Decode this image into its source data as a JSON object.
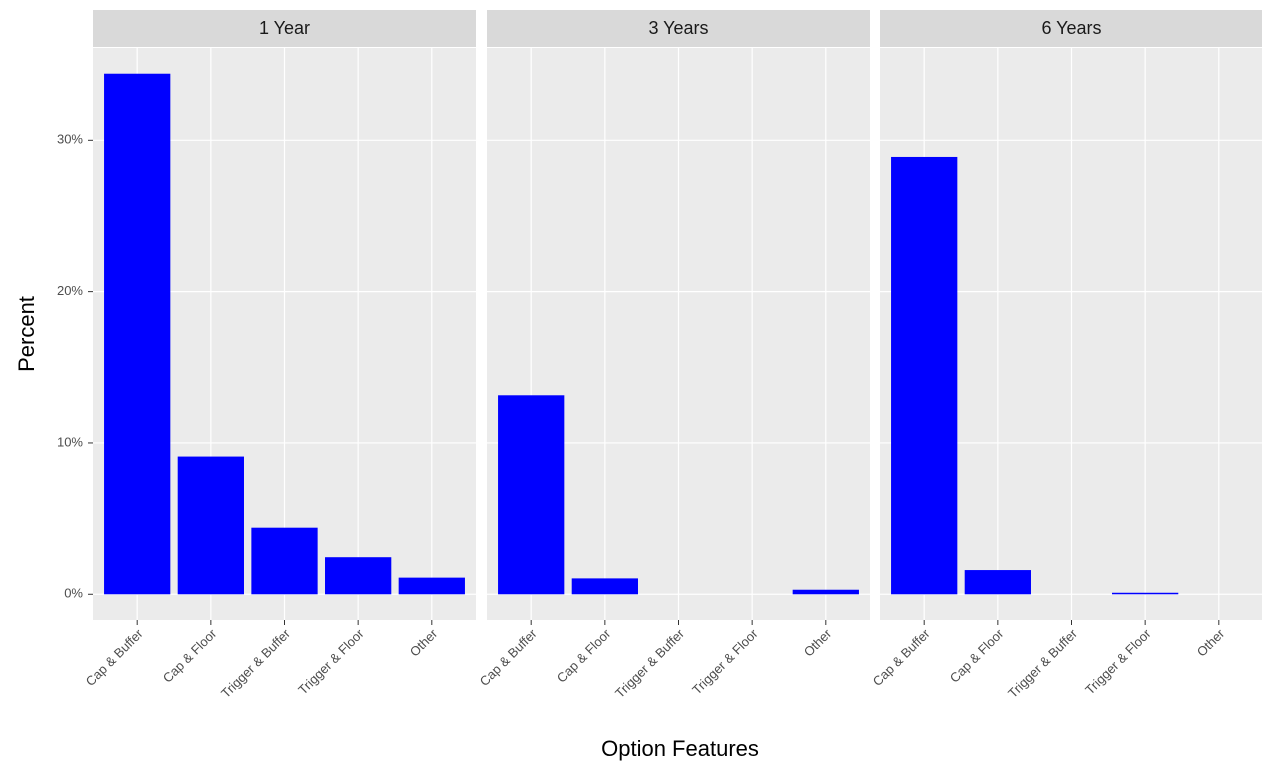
{
  "chart_data": {
    "type": "bar",
    "xlabel": "Option Features",
    "ylabel": "Percent",
    "categories": [
      "Cap & Buffer",
      "Cap & Floor",
      "Trigger & Buffer",
      "Trigger & Floor",
      "Other"
    ],
    "color": "#0000ff",
    "ylim": [
      -1.7,
      36.1
    ],
    "yticks": [
      {
        "value": 0,
        "label": "0%"
      },
      {
        "value": 10,
        "label": "10%"
      },
      {
        "value": 20,
        "label": "20%"
      },
      {
        "value": 30,
        "label": "30%"
      }
    ],
    "grid": true,
    "facets": [
      {
        "title": "1 Year",
        "values": [
          34.4,
          9.1,
          4.4,
          2.45,
          1.1
        ]
      },
      {
        "title": "3 Years",
        "values": [
          13.15,
          1.05,
          0,
          0,
          0.3
        ]
      },
      {
        "title": "6 Years",
        "values": [
          28.9,
          1.6,
          0,
          0.1,
          0
        ]
      }
    ]
  }
}
